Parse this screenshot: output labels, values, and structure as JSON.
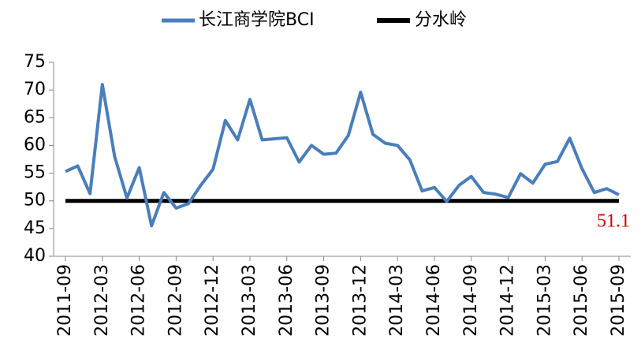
{
  "chart_data": {
    "type": "line",
    "categories": [
      "2011-09",
      null,
      null,
      "2012-03",
      null,
      null,
      "2012-06",
      null,
      null,
      "2012-09",
      null,
      null,
      "2012-12",
      null,
      null,
      "2013-03",
      null,
      null,
      "2013-06",
      null,
      null,
      "2013-09",
      null,
      null,
      "2013-12",
      null,
      null,
      "2014-03",
      null,
      null,
      "2014-06",
      null,
      null,
      "2014-09",
      null,
      null,
      "2014-12",
      null,
      null,
      "2015-03",
      null,
      null,
      "2015-06",
      null,
      null,
      "2015-09"
    ],
    "series": [
      {
        "name": "长江商学院BCI",
        "color": "#4a7ebb",
        "values": [
          55.3,
          56.3,
          51.3,
          71,
          58,
          50.5,
          56,
          45.5,
          51.5,
          48.7,
          49.5,
          52.8,
          55.7,
          64.5,
          61,
          68.3,
          61,
          61.2,
          61.4,
          57,
          60,
          58.4,
          58.6,
          61.8,
          69.6,
          62,
          60.4,
          60,
          57.4,
          51.8,
          52.4,
          49.9,
          52.8,
          54.4,
          51.5,
          51.2,
          50.6,
          54.9,
          53.2,
          56.6,
          57.1,
          61.3,
          55.8,
          51.5,
          52.2,
          51.1
        ]
      },
      {
        "name": "分水岭",
        "color": "#000000",
        "values": [
          50,
          50,
          50,
          50,
          50,
          50,
          50,
          50,
          50,
          50,
          50,
          50,
          50,
          50,
          50,
          50,
          50,
          50,
          50,
          50,
          50,
          50,
          50,
          50,
          50,
          50,
          50,
          50,
          50,
          50,
          50,
          50,
          50,
          50,
          50,
          50,
          50,
          50,
          50,
          50,
          50,
          50,
          50,
          50,
          50,
          50
        ]
      }
    ],
    "annotations": [
      {
        "text": "51.1",
        "color": "#d00000"
      }
    ],
    "ylim": [
      40,
      75
    ],
    "yticks": [
      40,
      45,
      50,
      55,
      60,
      65,
      70,
      75
    ],
    "legend": "top"
  }
}
